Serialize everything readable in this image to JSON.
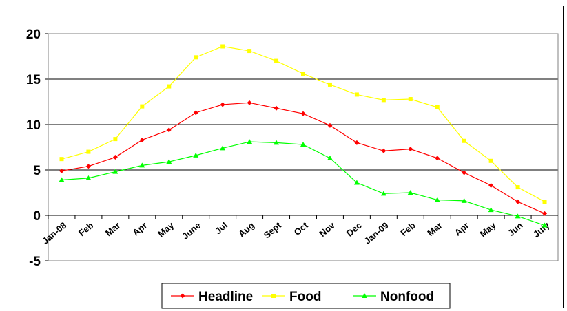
{
  "chart_data": {
    "type": "line",
    "title": "",
    "xlabel": "",
    "ylabel": "",
    "categories": [
      "Jan-08",
      "Feb",
      "Mar",
      "Apr",
      "May",
      "June",
      "Jul",
      "Aug",
      "Sept",
      "Oct",
      "Nov",
      "Dec",
      "Jan-09",
      "Feb",
      "Mar",
      "Apr",
      "May",
      "Jun",
      "July"
    ],
    "ylim": [
      -5,
      20
    ],
    "yticks": [
      "-5",
      "0",
      "5",
      "10",
      "15",
      "20"
    ],
    "grid": "horizontal",
    "legend_position": "bottom",
    "series": [
      {
        "name": "Headline",
        "color": "#ff0000",
        "marker": "diamond",
        "values": [
          4.9,
          5.4,
          6.4,
          8.3,
          9.4,
          11.3,
          12.2,
          12.4,
          11.8,
          11.2,
          9.9,
          8.0,
          7.1,
          7.3,
          6.3,
          4.7,
          3.3,
          1.5,
          0.2
        ]
      },
      {
        "name": "Food",
        "color": "#ffff00",
        "marker": "square",
        "values": [
          6.2,
          7.0,
          8.4,
          12.0,
          14.2,
          17.4,
          18.6,
          18.1,
          17.0,
          15.6,
          14.4,
          13.3,
          12.7,
          12.8,
          11.9,
          8.2,
          6.0,
          3.1,
          1.5
        ]
      },
      {
        "name": "Nonfood",
        "color": "#00ff00",
        "marker": "triangle",
        "values": [
          3.9,
          4.1,
          4.8,
          5.5,
          5.9,
          6.6,
          7.4,
          8.1,
          8.0,
          7.8,
          6.3,
          3.6,
          2.4,
          2.5,
          1.7,
          1.6,
          0.6,
          -0.1,
          -1.1
        ]
      }
    ]
  }
}
